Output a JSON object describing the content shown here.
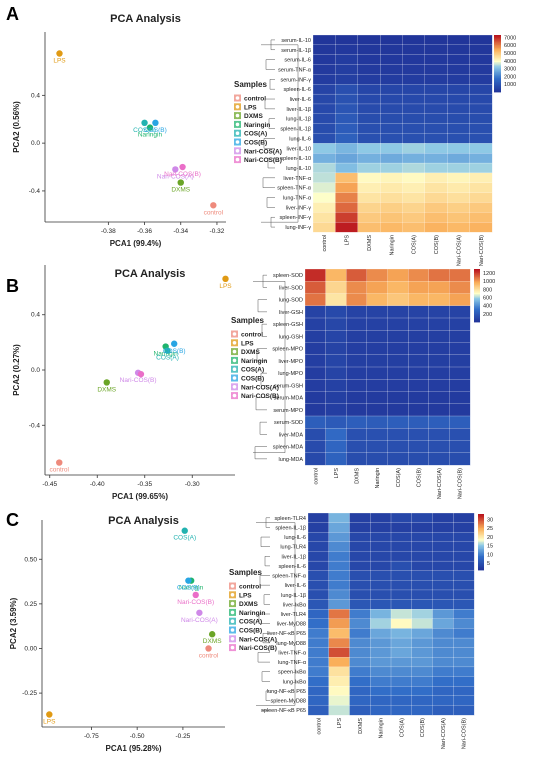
{
  "panel_letters": [
    "A",
    "B",
    "C"
  ],
  "chart_data": [
    {
      "panel": "A",
      "type": "scatter",
      "title": "PCA Analysis",
      "xlabel": "PCA1 (99.4%)",
      "ylabel": "PCA2 (0.56%)",
      "xlim": [
        -0.415,
        -0.315
      ],
      "ylim": [
        -0.66,
        0.93
      ],
      "xticks": [
        -0.38,
        -0.36,
        -0.34,
        -0.32
      ],
      "yticks": [
        -0.4,
        0.0,
        0.4
      ],
      "xtick_labels": [
        "-0.38",
        "-0.36",
        "-0.34",
        "-0.32"
      ],
      "ytick_labels": [
        "-0.4",
        "0.0",
        "0.4"
      ],
      "legend_title": "Samples",
      "series": [
        {
          "name": "control",
          "x": -0.322,
          "y": -0.52,
          "label": "control"
        },
        {
          "name": "LPS",
          "x": -0.407,
          "y": 0.75,
          "label": "LPS"
        },
        {
          "name": "DXMS",
          "x": -0.34,
          "y": -0.33,
          "label": "DXMS"
        },
        {
          "name": "Naringin",
          "x": -0.357,
          "y": 0.13,
          "label": "Naringin"
        },
        {
          "name": "COS(A)",
          "x": -0.36,
          "y": 0.17,
          "label": "COS(A)"
        },
        {
          "name": "COS(B)",
          "x": -0.354,
          "y": 0.17,
          "label": "COS(B)"
        },
        {
          "name": "Nari-COS(A)",
          "x": -0.343,
          "y": -0.22,
          "label": "Nari-COS(A)"
        },
        {
          "name": "Nari-COS(B)",
          "x": -0.339,
          "y": -0.2,
          "label": "Nari-COS(B)"
        }
      ]
    },
    {
      "panel": "A",
      "type": "heatmap",
      "rows": [
        "serum-IL-10",
        "serum-IL-1β",
        "serum-IL-6",
        "serum-TNF-α",
        "serum-INF-γ",
        "spleen-IL-6",
        "liver-IL-6",
        "liver-IL-1β",
        "lung-IL-1β",
        "spleen-IL-1β",
        "lung-IL-6",
        "liver-IL-10",
        "spleen-IL-10",
        "lung-IL-10",
        "liver-TNF-α",
        "spleen-TNF-α",
        "lung-TNF-α",
        "liver-INF-γ",
        "spleen-INF-γ",
        "lung-INF-γ"
      ],
      "columns": [
        "control",
        "LPS",
        "DXMS",
        "Naringin",
        "COS(A)",
        "COS(B)",
        "Nari-COS(A)",
        "Nari-COS(B)"
      ],
      "values": [
        [
          150,
          150,
          150,
          150,
          150,
          150,
          150,
          150
        ],
        [
          200,
          250,
          200,
          200,
          200,
          200,
          200,
          200
        ],
        [
          250,
          350,
          250,
          250,
          250,
          250,
          250,
          250
        ],
        [
          300,
          400,
          300,
          300,
          300,
          300,
          300,
          300
        ],
        [
          350,
          450,
          350,
          350,
          350,
          350,
          350,
          350
        ],
        [
          600,
          900,
          650,
          650,
          650,
          650,
          650,
          650
        ],
        [
          700,
          1000,
          750,
          750,
          750,
          750,
          750,
          750
        ],
        [
          750,
          1100,
          800,
          800,
          800,
          800,
          800,
          800
        ],
        [
          800,
          1200,
          850,
          850,
          850,
          850,
          850,
          850
        ],
        [
          850,
          1300,
          900,
          900,
          900,
          900,
          900,
          900
        ],
        [
          900,
          1400,
          950,
          950,
          950,
          950,
          950,
          950
        ],
        [
          3300,
          3000,
          3300,
          3300,
          3400,
          3300,
          3300,
          3300
        ],
        [
          2900,
          2700,
          2900,
          2800,
          2900,
          2900,
          2800,
          2900
        ],
        [
          3500,
          3100,
          3400,
          3400,
          3500,
          3400,
          3400,
          3400
        ],
        [
          3600,
          5200,
          4100,
          4200,
          4100,
          4300,
          4200,
          4300
        ],
        [
          3800,
          5600,
          4300,
          4400,
          4300,
          4500,
          4400,
          4500
        ],
        [
          4000,
          6000,
          4500,
          4600,
          4500,
          4700,
          4600,
          4700
        ],
        [
          4300,
          6300,
          4800,
          4900,
          4800,
          5000,
          4900,
          5000
        ],
        [
          4500,
          6800,
          5000,
          5100,
          5000,
          5200,
          5100,
          5200
        ],
        [
          4700,
          7200,
          5200,
          5300,
          5200,
          5400,
          5300,
          5400
        ]
      ],
      "scale_ticks": [
        7000,
        6000,
        5000,
        4000,
        3000,
        2000,
        1000
      ],
      "vmin": 0,
      "vmax": 7300
    },
    {
      "panel": "B",
      "type": "scatter",
      "title": "PCA Analysis",
      "xlabel": "PCA1 (99.65%)",
      "ylabel": "PCA2 (0.27%)",
      "xlim": [
        -0.455,
        -0.255
      ],
      "ylim": [
        -0.76,
        0.76
      ],
      "xticks": [
        -0.45,
        -0.4,
        -0.35,
        -0.3
      ],
      "yticks": [
        -0.4,
        0.0,
        0.4
      ],
      "xtick_labels": [
        "-0.45",
        "-0.40",
        "-0.35",
        "-0.30"
      ],
      "ytick_labels": [
        "-0.4",
        "0.0",
        "0.4"
      ],
      "legend_title": "Samples",
      "series": [
        {
          "name": "control",
          "x": -0.44,
          "y": -0.67,
          "label": "control"
        },
        {
          "name": "LPS",
          "x": -0.265,
          "y": 0.66,
          "label": "LPS"
        },
        {
          "name": "DXMS",
          "x": -0.39,
          "y": -0.09,
          "label": "DXMS"
        },
        {
          "name": "Naringin",
          "x": -0.328,
          "y": 0.17,
          "label": "Naringin"
        },
        {
          "name": "COS(A)",
          "x": -0.326,
          "y": 0.14,
          "label": "COS(A)"
        },
        {
          "name": "COS(B)",
          "x": -0.319,
          "y": 0.19,
          "label": "COS(B)"
        },
        {
          "name": "Nari-COS(A)",
          "x": -0.357,
          "y": -0.02,
          "label": "Nari-COS(B)"
        },
        {
          "name": "Nari-COS(B)",
          "x": -0.354,
          "y": -0.03,
          "label": ""
        }
      ]
    },
    {
      "panel": "B",
      "type": "heatmap",
      "rows": [
        "spleen-SOD",
        "liver-SOD",
        "lung-SOD",
        "liver-GSH",
        "spleen-GSH",
        "lung-GSH",
        "spleen-MPO",
        "liver-MPO",
        "lung-MPO",
        "serum-GSH",
        "serum-MDA",
        "serum-MPO",
        "serum-SOD",
        "liver-MDA",
        "spleen-MDA",
        "lung-MDA"
      ],
      "columns": [
        "control",
        "LPS",
        "DXMS",
        "Naringin",
        "COS(A)",
        "COS(B)",
        "Nari-COS(A)",
        "Nari-COS(B)"
      ],
      "values": [
        [
          1250,
          950,
          1150,
          1050,
          1000,
          1050,
          1100,
          1100
        ],
        [
          1150,
          850,
          1050,
          1000,
          950,
          1000,
          1000,
          1050
        ],
        [
          1100,
          800,
          1050,
          950,
          900,
          950,
          950,
          1000
        ],
        [
          100,
          130,
          100,
          100,
          100,
          100,
          100,
          100
        ],
        [
          90,
          120,
          90,
          90,
          90,
          90,
          90,
          90
        ],
        [
          80,
          110,
          80,
          80,
          80,
          80,
          80,
          80
        ],
        [
          70,
          100,
          75,
          75,
          75,
          75,
          75,
          75
        ],
        [
          75,
          110,
          80,
          80,
          80,
          80,
          80,
          80
        ],
        [
          70,
          105,
          75,
          75,
          75,
          75,
          75,
          75
        ],
        [
          70,
          90,
          70,
          70,
          70,
          70,
          70,
          70
        ],
        [
          60,
          80,
          60,
          60,
          60,
          60,
          60,
          60
        ],
        [
          55,
          75,
          55,
          55,
          55,
          55,
          55,
          55
        ],
        [
          240,
          220,
          240,
          230,
          240,
          235,
          240,
          240
        ],
        [
          150,
          300,
          170,
          170,
          170,
          170,
          170,
          170
        ],
        [
          140,
          280,
          160,
          160,
          160,
          160,
          160,
          160
        ],
        [
          130,
          260,
          150,
          150,
          150,
          150,
          150,
          150
        ]
      ],
      "scale_ticks": [
        1200,
        1000,
        800,
        600,
        400,
        200
      ],
      "vmin": 0,
      "vmax": 1300
    },
    {
      "panel": "C",
      "type": "scatter",
      "title": "PCA Analysis",
      "xlabel": "PCA1 (95.28%)",
      "ylabel": "PCA2 (3.59%)",
      "xlim": [
        -1.02,
        -0.02
      ],
      "ylim": [
        -0.44,
        0.72
      ],
      "xticks": [
        -0.75,
        -0.5,
        -0.25
      ],
      "yticks": [
        -0.25,
        0.0,
        0.25,
        0.5
      ],
      "xtick_labels": [
        "-0.75",
        "-0.50",
        "-0.25"
      ],
      "ytick_labels": [
        "-0.25",
        "0.00",
        "0.25",
        "0.50"
      ],
      "legend_title": "Samples",
      "series": [
        {
          "name": "control",
          "x": -0.11,
          "y": 0.0,
          "label": "control"
        },
        {
          "name": "LPS",
          "x": -0.98,
          "y": -0.37,
          "label": "LPS"
        },
        {
          "name": "DXMS",
          "x": -0.09,
          "y": 0.08,
          "label": "DXMS"
        },
        {
          "name": "Naringin",
          "x": -0.205,
          "y": 0.38,
          "label": "Naringin"
        },
        {
          "name": "COS(A)",
          "x": -0.24,
          "y": 0.66,
          "label": "COS(A)"
        },
        {
          "name": "COS(B)",
          "x": -0.22,
          "y": 0.38,
          "label": "COS(B)"
        },
        {
          "name": "Nari-COS(A)",
          "x": -0.16,
          "y": 0.2,
          "label": "Nari-COS(A)"
        },
        {
          "name": "Nari-COS(B)",
          "x": -0.18,
          "y": 0.3,
          "label": "Nari-COS(B)"
        }
      ]
    },
    {
      "panel": "C",
      "type": "heatmap",
      "rows": [
        "spleen-TLR4",
        "spleen-IL-1β",
        "lung-IL-6",
        "lung-TLR4",
        "liver-IL-1β",
        "spleen-IL-6",
        "spleen-TNF-α",
        "liver-IL-6",
        "lung-IL-1β",
        "liver-IκBα",
        "liver-TLR4",
        "liver-MyD88",
        "liver-NF-κB P65",
        "lung-MyD88",
        "liver-TNF-α",
        "lung-TNF-α",
        "speen-IκBα",
        "lung-IκBα",
        "lung-NF-κB P65",
        "spleen-MyD88",
        "spleen-NF-κB P65"
      ],
      "columns": [
        "control",
        "LPS",
        "DXMS",
        "Naringin",
        "COS(A)",
        "COS(B)",
        "Nari-COS(A)",
        "Nari-COS(B)"
      ],
      "values": [
        [
          3,
          14,
          3,
          3,
          4,
          4,
          3,
          3
        ],
        [
          3,
          13,
          3,
          3,
          3,
          3,
          3,
          3
        ],
        [
          4,
          12,
          4,
          4,
          4,
          4,
          4,
          4
        ],
        [
          4,
          11,
          4,
          4,
          4,
          4,
          4,
          4
        ],
        [
          4,
          10,
          4,
          4,
          4,
          4,
          4,
          4
        ],
        [
          4,
          10,
          4,
          4,
          5,
          4,
          4,
          4
        ],
        [
          5,
          10,
          5,
          5,
          5,
          5,
          5,
          5
        ],
        [
          5,
          10,
          5,
          5,
          5,
          5,
          5,
          5
        ],
        [
          5,
          11,
          5,
          5,
          5,
          5,
          5,
          5
        ],
        [
          6,
          12,
          6,
          6,
          6,
          6,
          6,
          6
        ],
        [
          8,
          28,
          10,
          14,
          17,
          16,
          12,
          10
        ],
        [
          9,
          26,
          11,
          16,
          19,
          17,
          13,
          11
        ],
        [
          10,
          24,
          10,
          13,
          14,
          13,
          11,
          10
        ],
        [
          10,
          27,
          11,
          12,
          13,
          12,
          11,
          11
        ],
        [
          10,
          30,
          11,
          12,
          13,
          12,
          11,
          11
        ],
        [
          10,
          25,
          11,
          12,
          12,
          12,
          11,
          11
        ],
        [
          10,
          21,
          10,
          11,
          11,
          11,
          10,
          10
        ],
        [
          9,
          20,
          9,
          10,
          10,
          10,
          9,
          9
        ],
        [
          8,
          19,
          8,
          9,
          9,
          9,
          8,
          8
        ],
        [
          8,
          18,
          8,
          8,
          8,
          8,
          8,
          8
        ],
        [
          7,
          17,
          7,
          8,
          8,
          8,
          7,
          7
        ]
      ],
      "scale_ticks": [
        30,
        25,
        20,
        15,
        10,
        5
      ],
      "vmin": 1,
      "vmax": 33
    }
  ],
  "colors": {
    "control": "#ee8a7c",
    "LPS": "#e09a14",
    "DXMS": "#6aa526",
    "Naringin": "#1fb46d",
    "COS(A)": "#22b2b0",
    "COS(B)": "#28a5e3",
    "Nari-COS(A)": "#cf89e8",
    "Nari-COS(B)": "#ea6ec8"
  }
}
